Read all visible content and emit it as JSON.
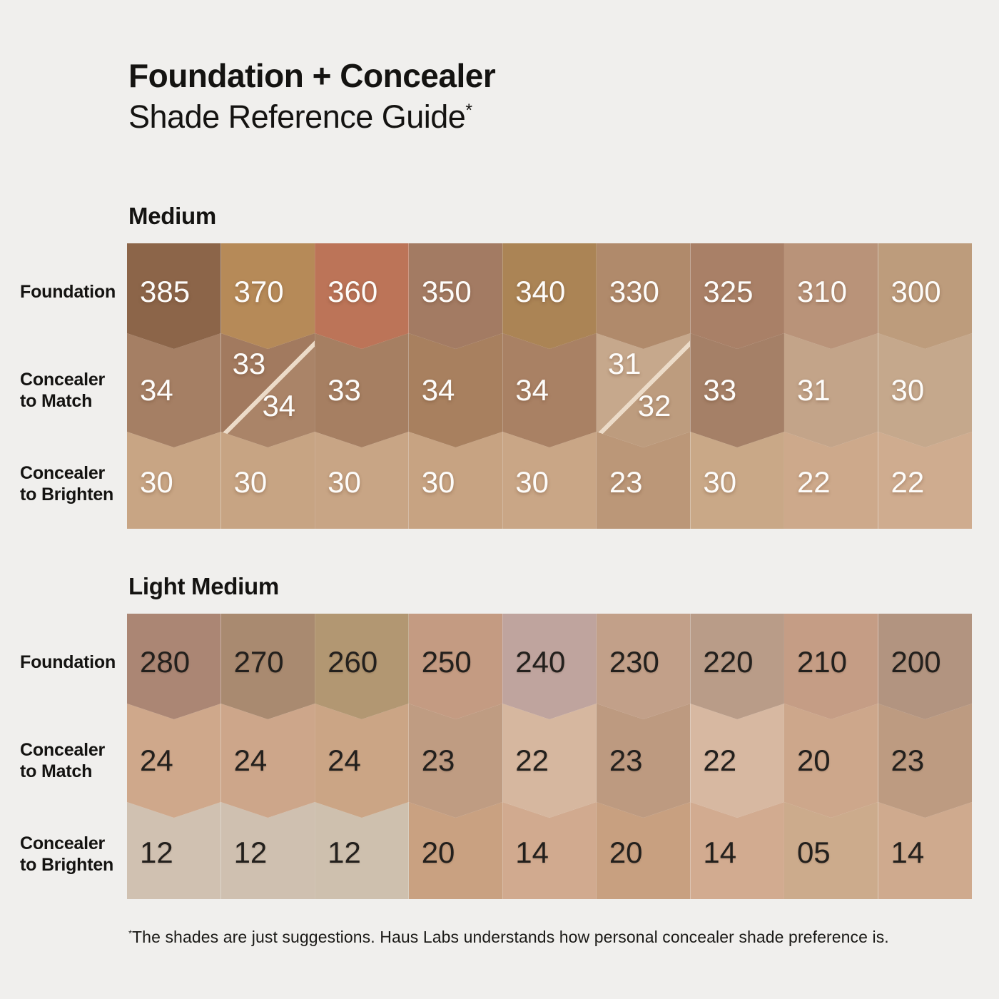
{
  "theme": {
    "background": "#f0efed",
    "split_line": "rgba(233,208,180,0.65)"
  },
  "header": {
    "title": "Foundation + Concealer",
    "subtitle": "Shade Reference Guide",
    "subtitle_asterisk": "*"
  },
  "row_labels": [
    {
      "key": "foundation",
      "lines": [
        "Foundation"
      ]
    },
    {
      "key": "match",
      "lines": [
        "Concealer",
        "to Match"
      ]
    },
    {
      "key": "brighten",
      "lines": [
        "Concealer",
        "to Brighten"
      ]
    }
  ],
  "sections": [
    {
      "name": "Medium",
      "number_color": "#fdfcfa",
      "number_shadow": "0 2px 5px rgba(96,61,37,0.38)",
      "rows": [
        {
          "key": "foundation",
          "cells": [
            {
              "label": "385",
              "color": "#8c6549"
            },
            {
              "label": "370",
              "color": "#b68a58"
            },
            {
              "label": "360",
              "color": "#bc7458"
            },
            {
              "label": "350",
              "color": "#a37b63"
            },
            {
              "label": "340",
              "color": "#ab8455"
            },
            {
              "label": "330",
              "color": "#b08a6b"
            },
            {
              "label": "325",
              "color": "#a98067"
            },
            {
              "label": "310",
              "color": "#b99379"
            },
            {
              "label": "300",
              "color": "#bd9c7c"
            }
          ]
        },
        {
          "key": "match",
          "cells": [
            {
              "label": "34",
              "color": "#a57f64"
            },
            {
              "label": "33",
              "label2": "34",
              "split": true,
              "color": "#a27a5f",
              "color2": "#aa8468"
            },
            {
              "label": "33",
              "color": "#a67f62"
            },
            {
              "label": "34",
              "color": "#a8805f"
            },
            {
              "label": "34",
              "color": "#a98164"
            },
            {
              "label": "31",
              "label2": "32",
              "split": true,
              "color": "#c6a88c",
              "color2": "#bd9c7e"
            },
            {
              "label": "33",
              "color": "#a58067"
            },
            {
              "label": "31",
              "color": "#c3a489"
            },
            {
              "label": "30",
              "color": "#c5a88c"
            }
          ]
        },
        {
          "key": "brighten",
          "cells": [
            {
              "label": "30",
              "color": "#c8a584"
            },
            {
              "label": "30",
              "color": "#c7a483"
            },
            {
              "label": "30",
              "color": "#c8a585"
            },
            {
              "label": "30",
              "color": "#c7a382"
            },
            {
              "label": "30",
              "color": "#c9a686"
            },
            {
              "label": "23",
              "color": "#bb9778"
            },
            {
              "label": "30",
              "color": "#c9a887"
            },
            {
              "label": "22",
              "color": "#cda98b"
            },
            {
              "label": "22",
              "color": "#cfac8f"
            }
          ]
        }
      ]
    },
    {
      "name": "Light Medium",
      "number_color": "#23201d",
      "number_shadow": "0 1px 2px rgba(80,55,40,0.25)",
      "rows": [
        {
          "key": "foundation",
          "cells": [
            {
              "label": "280",
              "color": "#ab8674"
            },
            {
              "label": "270",
              "color": "#a98a70"
            },
            {
              "label": "260",
              "color": "#b29772"
            },
            {
              "label": "250",
              "color": "#c49b82"
            },
            {
              "label": "240",
              "color": "#bfa49e"
            },
            {
              "label": "230",
              "color": "#c2a089"
            },
            {
              "label": "220",
              "color": "#b99c88"
            },
            {
              "label": "210",
              "color": "#c59d85"
            },
            {
              "label": "200",
              "color": "#b29480"
            }
          ]
        },
        {
          "key": "match",
          "cells": [
            {
              "label": "24",
              "color": "#cfa88b"
            },
            {
              "label": "24",
              "color": "#cda68a"
            },
            {
              "label": "24",
              "color": "#cba585"
            },
            {
              "label": "23",
              "color": "#bf9c82"
            },
            {
              "label": "22",
              "color": "#d6b79f"
            },
            {
              "label": "23",
              "color": "#bd9a80"
            },
            {
              "label": "22",
              "color": "#d7b8a1"
            },
            {
              "label": "20",
              "color": "#cda78b"
            },
            {
              "label": "23",
              "color": "#bd9b81"
            }
          ]
        },
        {
          "key": "brighten",
          "cells": [
            {
              "label": "12",
              "color": "#d0c1b1"
            },
            {
              "label": "12",
              "color": "#cfc0b0"
            },
            {
              "label": "12",
              "color": "#cec0ae"
            },
            {
              "label": "20",
              "color": "#c9a181"
            },
            {
              "label": "14",
              "color": "#d1aa8f"
            },
            {
              "label": "20",
              "color": "#c8a080"
            },
            {
              "label": "14",
              "color": "#d2ab90"
            },
            {
              "label": "05",
              "color": "#ccab8c"
            },
            {
              "label": "14",
              "color": "#cfaa8e"
            }
          ]
        }
      ]
    }
  ],
  "footnote": {
    "asterisk": "*",
    "text": "The shades are just suggestions. Haus Labs understands how personal concealer shade preference is."
  },
  "chart_data": {
    "type": "table",
    "title": "Foundation + Concealer Shade Reference Guide",
    "row_headers": [
      "Foundation",
      "Concealer to Match",
      "Concealer to Brighten"
    ],
    "sections": [
      {
        "name": "Medium",
        "foundation": [
          "385",
          "370",
          "360",
          "350",
          "340",
          "330",
          "325",
          "310",
          "300"
        ],
        "concealer_to_match": [
          "34",
          "33/34",
          "33",
          "34",
          "34",
          "31/32",
          "33",
          "31",
          "30"
        ],
        "concealer_to_brighten": [
          "30",
          "30",
          "30",
          "30",
          "30",
          "23",
          "30",
          "22",
          "22"
        ]
      },
      {
        "name": "Light Medium",
        "foundation": [
          "280",
          "270",
          "260",
          "250",
          "240",
          "230",
          "220",
          "210",
          "200"
        ],
        "concealer_to_match": [
          "24",
          "24",
          "24",
          "23",
          "22",
          "23",
          "22",
          "20",
          "23"
        ],
        "concealer_to_brighten": [
          "12",
          "12",
          "12",
          "20",
          "14",
          "20",
          "14",
          "05",
          "14"
        ]
      }
    ]
  }
}
